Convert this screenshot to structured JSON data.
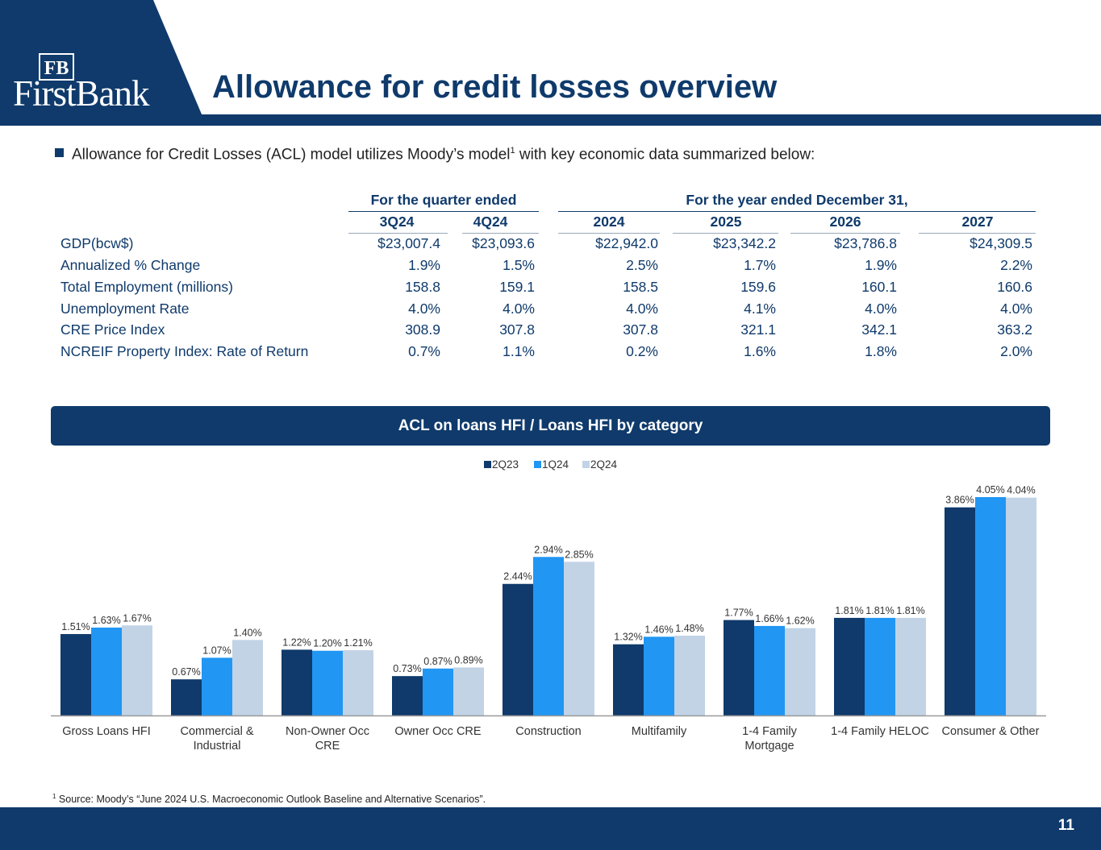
{
  "brand": {
    "logo_monogram": "FB",
    "logo_text": "FirstBank",
    "primary_color": "#0f3a6b",
    "mid_blue": "#2196f3",
    "light_blue": "#c2d3e6"
  },
  "header": {
    "title": "Allowance for credit losses overview"
  },
  "intro": {
    "text_before": "Allowance for Credit Losses (ACL) model utilizes Moody’s model",
    "footnote_ref": "1",
    "text_after": " with key economic data summarized below:"
  },
  "econ_table": {
    "group_quarter": "For the quarter ended",
    "group_year": "For the year ended December 31,",
    "columns": [
      "3Q24",
      "4Q24",
      "2024",
      "2025",
      "2026",
      "2027"
    ],
    "rows": [
      {
        "label": "GDP(bcw$)",
        "values": [
          "$23,007.4",
          "$23,093.6",
          "$22,942.0",
          "$23,342.2",
          "$23,786.8",
          "$24,309.5"
        ]
      },
      {
        "label": "Annualized % Change",
        "values": [
          "1.9%",
          "1.5%",
          "2.5%",
          "1.7%",
          "1.9%",
          "2.2%"
        ]
      },
      {
        "label": "Total Employment (millions)",
        "values": [
          "158.8",
          "159.1",
          "158.5",
          "159.6",
          "160.1",
          "160.6"
        ]
      },
      {
        "label": "Unemployment Rate",
        "values": [
          "4.0%",
          "4.0%",
          "4.0%",
          "4.1%",
          "4.0%",
          "4.0%"
        ]
      },
      {
        "label": "CRE Price Index",
        "values": [
          "308.9",
          "307.8",
          "307.8",
          "321.1",
          "342.1",
          "363.2"
        ]
      },
      {
        "label": "NCREIF Property Index: Rate of Return",
        "values": [
          "0.7%",
          "1.1%",
          "0.2%",
          "1.6%",
          "1.8%",
          "2.0%"
        ]
      }
    ]
  },
  "section": {
    "title": "ACL on loans HFI / Loans HFI by category"
  },
  "chart_data": {
    "type": "bar",
    "categories": [
      "Gross Loans HFI",
      "Commercial & Industrial",
      "Non-Owner Occ CRE",
      "Owner Occ CRE",
      "Construction",
      "Multifamily",
      "1-4 Family Mortgage",
      "1-4 Family HELOC",
      "Consumer & Other"
    ],
    "category_lines": [
      [
        "Gross Loans HFI"
      ],
      [
        "Commercial &",
        "Industrial"
      ],
      [
        "Non-Owner Occ",
        "CRE"
      ],
      [
        "Owner Occ CRE"
      ],
      [
        "Construction"
      ],
      [
        "Multifamily"
      ],
      [
        "1-4 Family",
        "Mortgage"
      ],
      [
        "1-4 Family HELOC"
      ],
      [
        "Consumer & Other"
      ]
    ],
    "series": [
      {
        "name": "2Q23",
        "color": "#0f3a6b",
        "values": [
          1.51,
          0.67,
          1.22,
          0.73,
          2.44,
          1.32,
          1.77,
          1.81,
          3.86
        ],
        "labels": [
          "1.51%",
          "0.67%",
          "1.22%",
          "0.73%",
          "2.44%",
          "1.32%",
          "1.77%",
          "1.81%",
          "3.86%"
        ]
      },
      {
        "name": "1Q24",
        "color": "#2196f3",
        "values": [
          1.63,
          1.07,
          1.2,
          0.87,
          2.94,
          1.46,
          1.66,
          1.81,
          4.05
        ],
        "labels": [
          "1.63%",
          "1.07%",
          "1.20%",
          "0.87%",
          "2.94%",
          "1.46%",
          "1.66%",
          "1.81%",
          "4.05%"
        ]
      },
      {
        "name": "2Q24",
        "color": "#c2d3e6",
        "values": [
          1.67,
          1.4,
          1.21,
          0.89,
          2.85,
          1.48,
          1.62,
          1.81,
          4.04
        ],
        "labels": [
          "1.67%",
          "1.40%",
          "1.21%",
          "0.89%",
          "2.85%",
          "1.48%",
          "1.62%",
          "1.81%",
          "4.04%"
        ]
      }
    ],
    "ylim": [
      0,
      4.05
    ],
    "legend": "top-center",
    "grid": false,
    "xlabel": "",
    "ylabel": ""
  },
  "footnote": {
    "marker": "1",
    "text": " Source: Moody’s “June 2024 U.S. Macroeconomic Outlook Baseline and Alternative Scenarios”."
  },
  "footer": {
    "page_number": "11"
  }
}
